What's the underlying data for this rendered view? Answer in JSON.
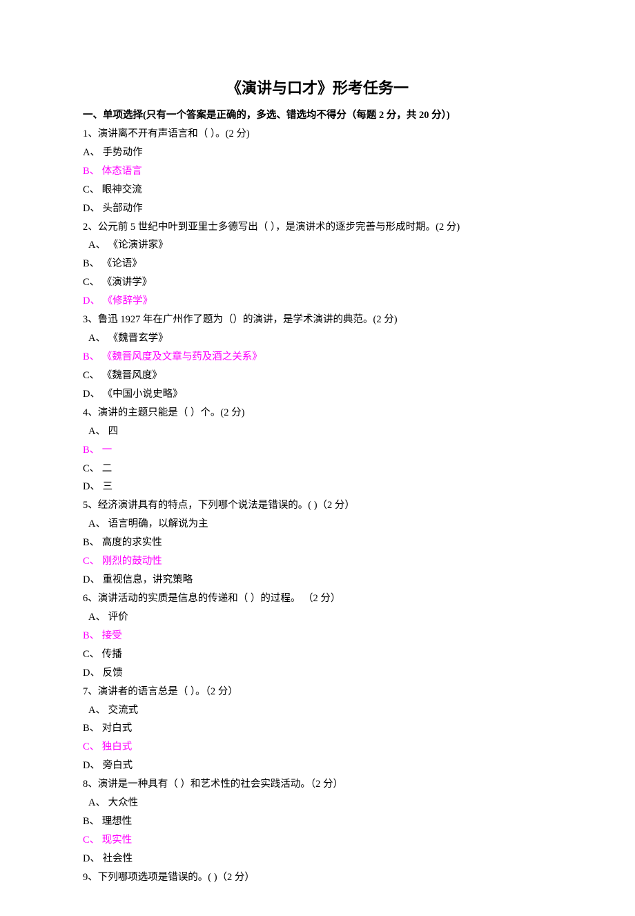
{
  "title": "《演讲与口才》形考任务一",
  "section_header": "一、单项选择(只有一个答案是正确的，多选、错选均不得分（每题 2 分，共 20 分）)",
  "correct_color": "#ff00ff",
  "text_color": "#000000",
  "background_color": "#ffffff",
  "font_family": "SimSun",
  "base_fontsize": 14.5,
  "title_fontsize": 22,
  "questions": [
    {
      "text": "1、演讲离不开有声语言和（  ）。(2 分)",
      "indent": false,
      "options": [
        {
          "label": "A、  手势动作",
          "correct": false
        },
        {
          "label": "B、  体态语言",
          "correct": true
        },
        {
          "label": "C、  眼神交流",
          "correct": false
        },
        {
          "label": "D、  头部动作",
          "correct": false
        }
      ]
    },
    {
      "text": "2、公元前 5 世纪中叶到亚里士多德写出（  ），是演讲术的逐步完善与形成时期。(2 分)",
      "indent": true,
      "options": [
        {
          "label": "A、  《论演讲家》",
          "correct": false
        },
        {
          "label": "B、  《论语》",
          "correct": false
        },
        {
          "label": "C、  《演讲学》",
          "correct": false
        },
        {
          "label": "D、  《修辞学》",
          "correct": true
        }
      ]
    },
    {
      "text": "3、鲁迅 1927 年在广州作了题为（）的演讲，是学术演讲的典范。(2 分)",
      "indent": true,
      "options": [
        {
          "label": "A、  《魏晋玄学》",
          "correct": false
        },
        {
          "label": "B、  《魏晋风度及文章与药及酒之关系》",
          "correct": true
        },
        {
          "label": "C、  《魏晋风度》",
          "correct": false
        },
        {
          "label": "D、  《中国小说史略》",
          "correct": false
        }
      ]
    },
    {
      "text": "4、演讲的主题只能是（   ）个。(2 分)",
      "indent": true,
      "options": [
        {
          "label": "A、   四",
          "correct": false
        },
        {
          "label": "B、  一",
          "correct": true
        },
        {
          "label": "C、   二",
          "correct": false
        },
        {
          "label": "D、   三",
          "correct": false
        }
      ]
    },
    {
      "text": "5、经济演讲具有的特点，下列哪个说法是错误的。(   )（2 分）",
      "indent": true,
      "options": [
        {
          "label": "A、  语言明确，以解说为主",
          "correct": false
        },
        {
          "label": "B、  高度的求实性",
          "correct": false
        },
        {
          "label": "C、  刚烈的鼓动性",
          "correct": true
        },
        {
          "label": "D、  重视信息，讲究策略",
          "correct": false
        }
      ]
    },
    {
      "text": "6、演讲活动的实质是信息的传递和（   ）的过程。  （2 分）",
      "indent": true,
      "options": [
        {
          "label": "A、   评价",
          "correct": false
        },
        {
          "label": "B、   接受",
          "correct": true
        },
        {
          "label": "C、   传播",
          "correct": false
        },
        {
          "label": "D、   反馈",
          "correct": false
        }
      ]
    },
    {
      "text": "7、演讲者的语言总是（   ）。（2 分）",
      "indent": true,
      "options": [
        {
          "label": "A、   交流式",
          "correct": false
        },
        {
          "label": "B、   对白式",
          "correct": false
        },
        {
          "label": "C、   独白式",
          "correct": true
        },
        {
          "label": "D、   旁白式",
          "correct": false
        }
      ]
    },
    {
      "text": "8、演讲是一种具有（   ）和艺术性的社会实践活动。（2 分）",
      "indent": true,
      "options": [
        {
          "label": "A、   大众性",
          "correct": false
        },
        {
          "label": "B、   理想性",
          "correct": false
        },
        {
          "label": "C、   现实性",
          "correct": true
        },
        {
          "label": "D、   社会性",
          "correct": false
        }
      ]
    },
    {
      "text": "9、下列哪项选项是错误的。(   )（2 分）",
      "indent": true,
      "options": []
    }
  ]
}
